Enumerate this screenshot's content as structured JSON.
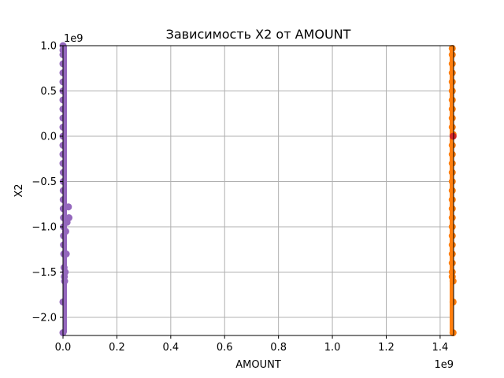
{
  "chart_data": {
    "type": "scatter",
    "title": "Зависимость X2 от AMOUNT",
    "xlabel": "AMOUNT",
    "ylabel": "X2",
    "x_offset_text": "1e9",
    "y_offset_text": "1e9",
    "xlim": [
      0,
      1.45
    ],
    "ylim": [
      -2.2,
      1.0
    ],
    "grid": true,
    "x_ticks": [
      0.0,
      0.2,
      0.4,
      0.6,
      0.8,
      1.0,
      1.2,
      1.4
    ],
    "x_tick_labels": [
      "0.0",
      "0.2",
      "0.4",
      "0.6",
      "0.8",
      "1.0",
      "1.2",
      "1.4"
    ],
    "y_ticks": [
      1.0,
      0.5,
      0.0,
      -0.5,
      -1.0,
      -1.5,
      -2.0
    ],
    "y_tick_labels": [
      "1.0",
      "0.5",
      "0.0",
      "−0.5",
      "−1.0",
      "−1.5",
      "−2.0"
    ],
    "series": [
      {
        "color": "#9467bd",
        "x": [
          0.0,
          0.0,
          0.0,
          0.0,
          0.0,
          0.0,
          0.0,
          0.0,
          0.0,
          0.0,
          0.0,
          0.0,
          0.0,
          0.0,
          0.0,
          0.001,
          0.001,
          0.001,
          0.001,
          0.001,
          0.002,
          0.002,
          0.002,
          0.002,
          0.0,
          0.0,
          0.003,
          0.004,
          0.005,
          0.006,
          0.008,
          0.01,
          0.012,
          0.015,
          0.02,
          0.022
        ],
        "y": [
          1.0,
          0.95,
          0.9,
          0.8,
          0.7,
          0.6,
          0.5,
          0.4,
          0.3,
          0.2,
          0.1,
          0.0,
          -0.1,
          -0.2,
          -0.3,
          -0.4,
          -0.5,
          -0.6,
          -0.7,
          -0.8,
          -0.9,
          -1.0,
          -1.1,
          -1.2,
          -1.83,
          -2.17,
          -1.3,
          -1.45,
          -1.55,
          -1.6,
          -1.5,
          -1.05,
          -1.3,
          -0.95,
          -0.78,
          -0.9
        ]
      },
      {
        "color": "#ff7f0e",
        "x": [
          1.445,
          1.445,
          1.445,
          1.445,
          1.445,
          1.445,
          1.445,
          1.445,
          1.445,
          1.445,
          1.445,
          1.445,
          1.445,
          1.445,
          1.445,
          1.445,
          1.445,
          1.445,
          1.445,
          1.445,
          1.445,
          1.445,
          1.445,
          1.445,
          1.445,
          1.445,
          1.448,
          1.448,
          1.448,
          1.448
        ],
        "y": [
          0.97,
          0.9,
          0.8,
          0.7,
          0.6,
          0.5,
          0.4,
          0.3,
          0.2,
          0.1,
          -0.1,
          -0.2,
          -0.3,
          -0.4,
          -0.5,
          -0.6,
          -0.7,
          -0.8,
          -0.9,
          -1.0,
          -1.1,
          -1.2,
          -1.3,
          -1.4,
          -1.5,
          -1.55,
          -1.6,
          -1.83,
          -2.17,
          0.02
        ]
      },
      {
        "color": "#d62728",
        "x": [
          1.448
        ],
        "y": [
          0.0
        ]
      }
    ]
  }
}
